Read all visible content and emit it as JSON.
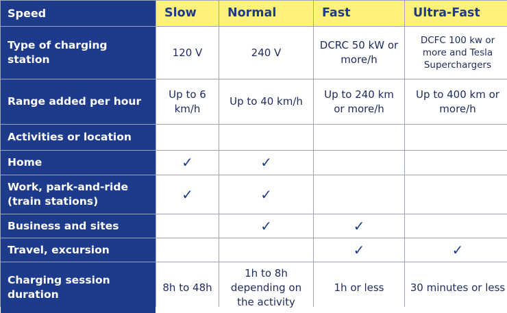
{
  "colors": {
    "header_blue": "#1d3b8a",
    "header_yellow": "#fff27a",
    "text_blue": "#1c2a5e"
  },
  "icons": {
    "check": "check-icon"
  },
  "table": {
    "corner": "Speed",
    "columns": [
      "Slow",
      "Normal",
      "Fast",
      "Ultra-Fast"
    ],
    "check_glyph": "✓",
    "rows": [
      {
        "label": "Type of charging station",
        "cells": [
          "120 V",
          "240 V",
          "DCRC 50 kW or more/h",
          "DCFC 100 kw or more and Tesla Superchargers"
        ]
      },
      {
        "label": "Range added per hour",
        "cells": [
          "Up to 6 km/h",
          "Up to 40 km/h",
          "Up to 240 km or more/h",
          "Up to 400 km or more/h"
        ]
      },
      {
        "label": "Activities or location",
        "cells": [
          "",
          "",
          "",
          ""
        ]
      },
      {
        "label": "Home",
        "checks": [
          true,
          true,
          false,
          false
        ]
      },
      {
        "label": "Work, park-and-ride (train stations)",
        "checks": [
          true,
          true,
          false,
          false
        ]
      },
      {
        "label": "Business and sites",
        "checks": [
          false,
          true,
          true,
          false
        ]
      },
      {
        "label": "Travel, excursion",
        "checks": [
          false,
          false,
          true,
          true
        ]
      },
      {
        "label": "Charging session duration",
        "cells": [
          "8h to 48h",
          "1h to 8h depending on the activity",
          "1h or less",
          "30 minutes or less"
        ]
      }
    ]
  }
}
